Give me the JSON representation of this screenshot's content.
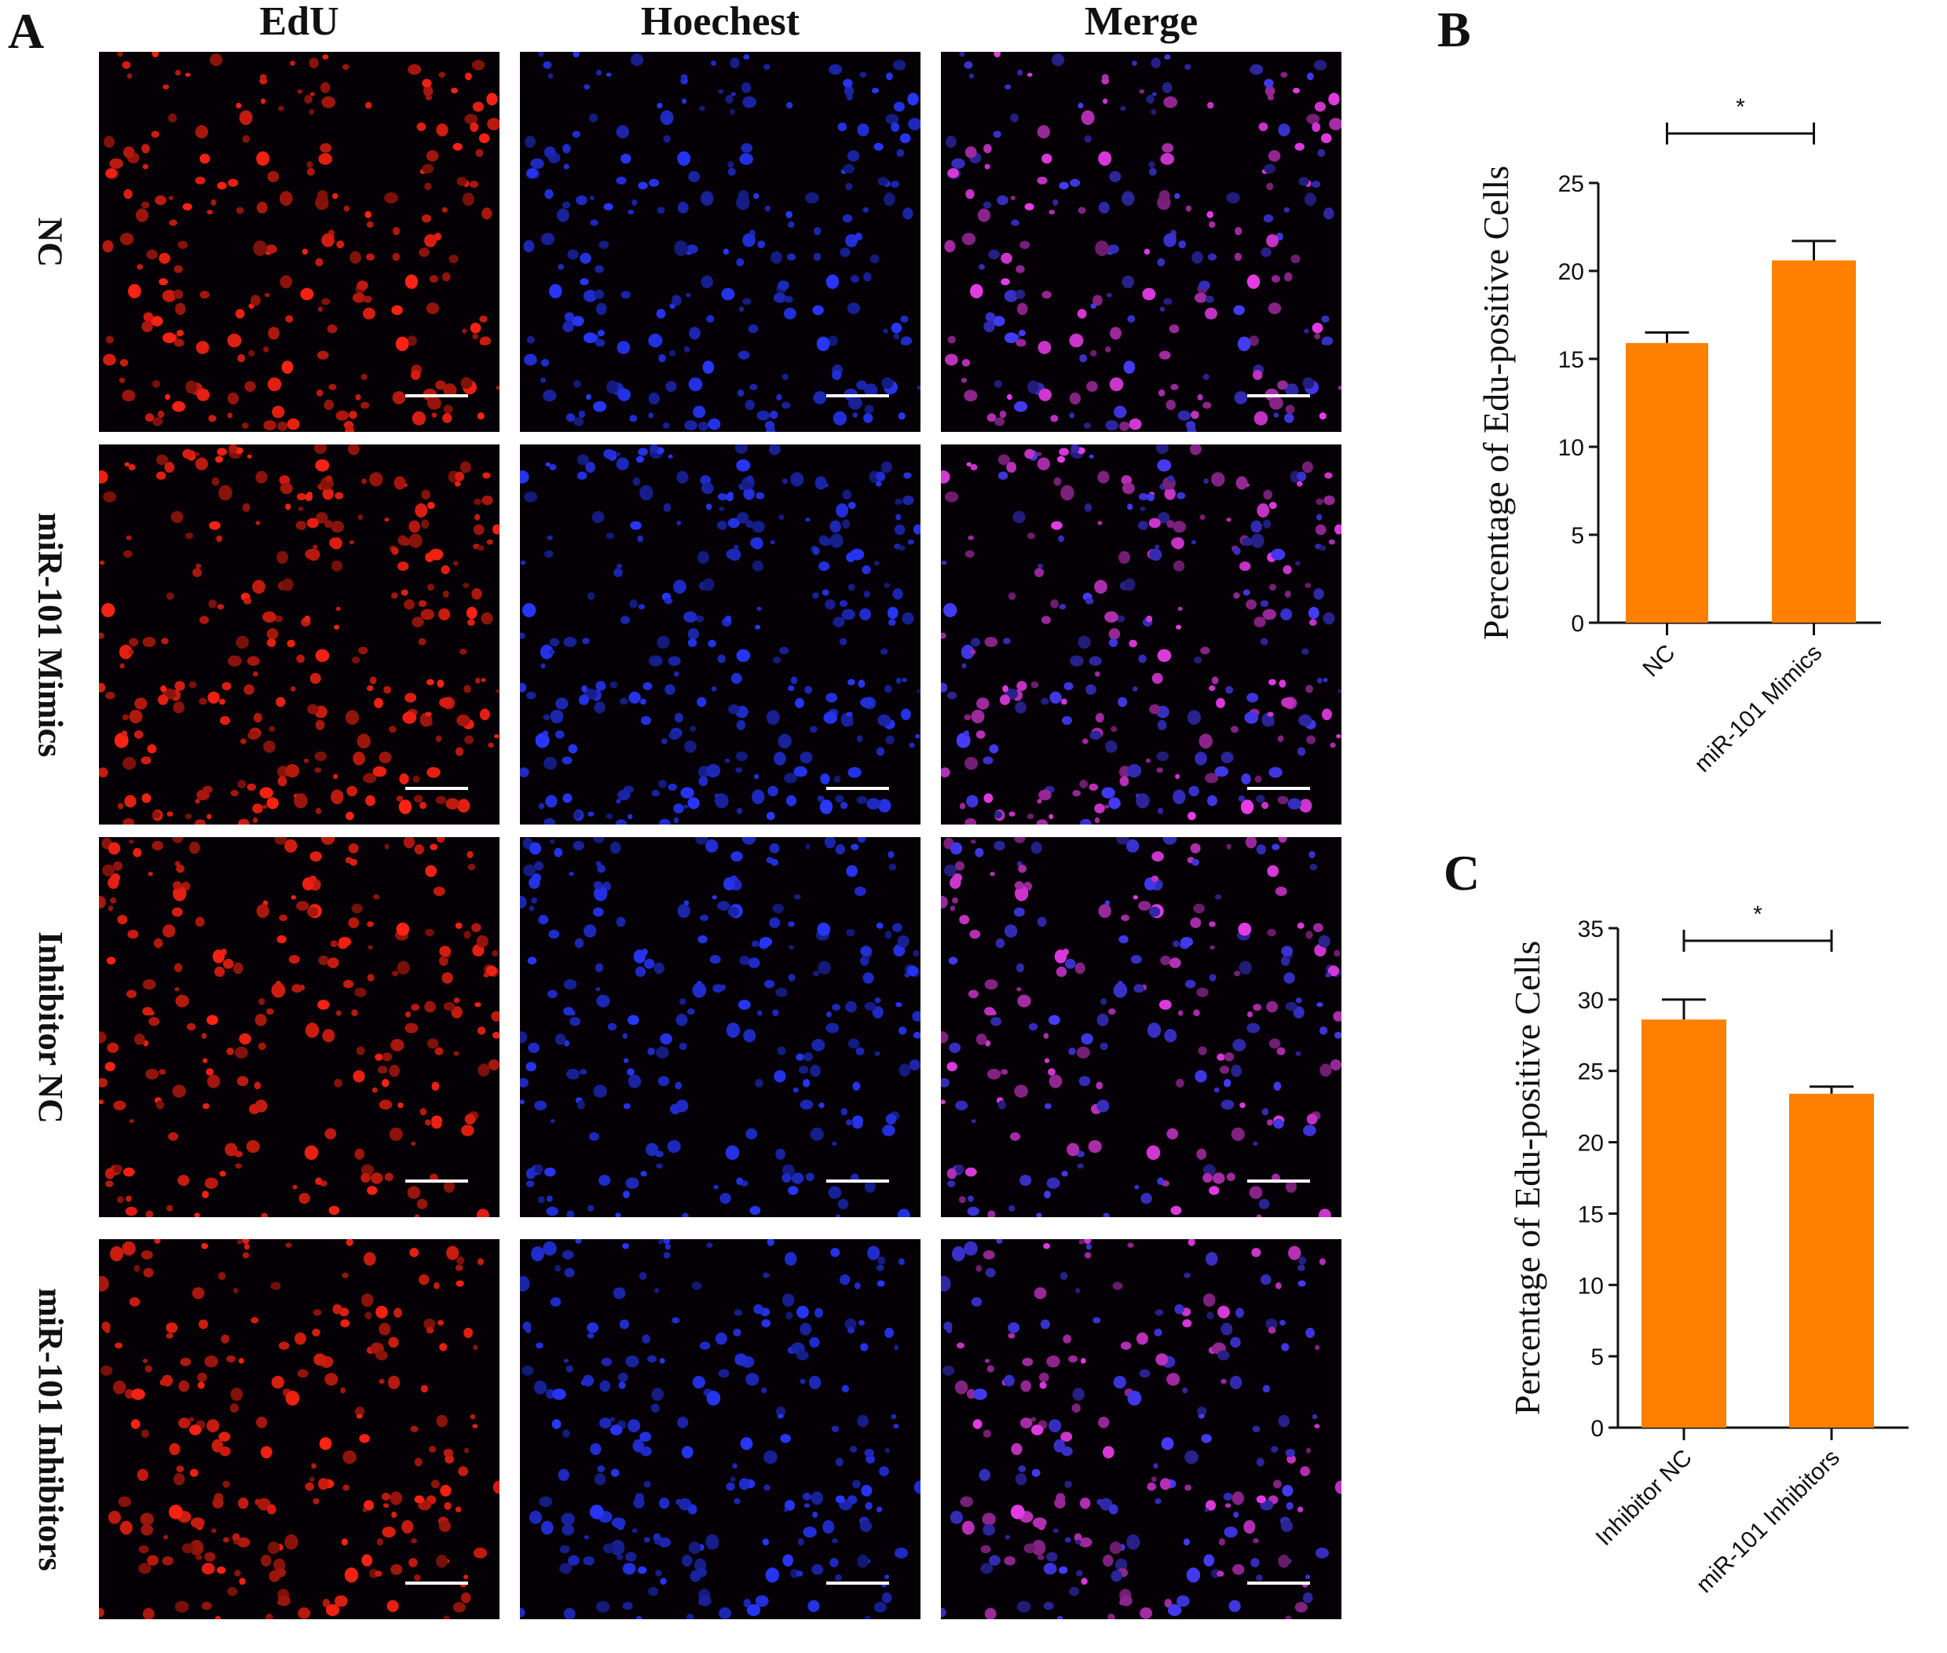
{
  "panel_labels": {
    "a": "A",
    "b": "B",
    "c": "C"
  },
  "micrograph_grid": {
    "columns": [
      {
        "label": "EdU",
        "channel": "edu",
        "color": "#ff2a1a"
      },
      {
        "label": "Hoechest",
        "channel": "hoechst",
        "color": "#2f3cff"
      },
      {
        "label": "Merge",
        "channel": "merge",
        "color": "#d040e0"
      }
    ],
    "rows": [
      {
        "label": "NC"
      },
      {
        "label": "miR-101 Mimics"
      },
      {
        "label": "Inhibitor NC"
      },
      {
        "label": "miR-101 Inhibitors"
      }
    ]
  },
  "chart_data": [
    {
      "panel": "B",
      "type": "bar",
      "categories": [
        "NC",
        "miR-101 Mimics"
      ],
      "values": [
        15.9,
        20.6
      ],
      "errors": [
        0.6,
        1.1
      ],
      "ylabel": "Percentage of Edu-positive Cells",
      "ylim": [
        0,
        25
      ],
      "yticks": [
        0,
        5,
        10,
        15,
        20,
        25
      ],
      "bar_color": "#ff8000",
      "significance": "*"
    },
    {
      "panel": "C",
      "type": "bar",
      "categories": [
        "Inhibitor NC",
        "miR-101 Inhibitors"
      ],
      "values": [
        28.6,
        23.4
      ],
      "errors": [
        1.4,
        0.5
      ],
      "ylabel": "Percentage of Edu-positive Cells",
      "ylim": [
        0,
        35
      ],
      "yticks": [
        0,
        5,
        10,
        15,
        20,
        25,
        30,
        35
      ],
      "bar_color": "#ff8000",
      "significance": "*"
    }
  ]
}
